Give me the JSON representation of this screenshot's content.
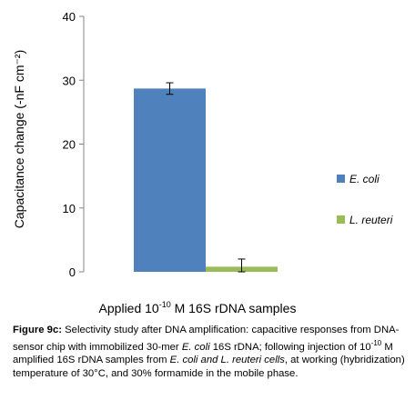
{
  "chart_data": {
    "type": "bar",
    "categories": [
      "E. coli",
      "L. reuteri"
    ],
    "values": [
      28.7,
      0.8
    ],
    "errors": [
      0.9,
      1.2
    ],
    "colors": [
      "#4f81bd",
      "#9bbb59"
    ],
    "ylim": [
      0,
      40
    ],
    "yticks": [
      0,
      10,
      20,
      30,
      40
    ],
    "ylabel": "Capacitance change (-nF cm⁻²)",
    "xlabel_pre": "Applied 10",
    "xlabel_sup": "-10",
    "xlabel_post": " M 16S rDNA samples",
    "legend": [
      {
        "label": "E. coli",
        "color": "#4f81bd"
      },
      {
        "label": "L. reuteri",
        "color": "#9bbb59"
      }
    ],
    "legend_position": "right",
    "grid": false
  },
  "caption": {
    "figure_label": "Figure 9c:",
    "t1": " Selectivity study after DNA amplification: capacitive responses from DNA-sensor chip with immobilized 30-mer ",
    "i1": "E. coli",
    "t2": " 16S rDNA; following injection of 10",
    "sup": "-10",
    "t3": " M amplified 16S rDNA samples from ",
    "i2": "E. coli and L. reuteri cells",
    "t4": ", at working (hybridization) temperature of 30°C, and 30% formamide in the mobile phase."
  }
}
